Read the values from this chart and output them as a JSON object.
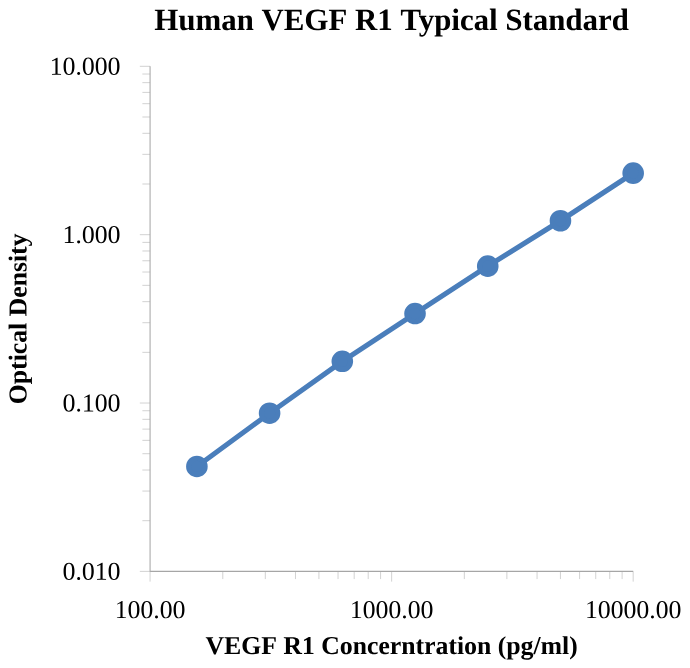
{
  "chart_data": {
    "type": "line",
    "title": "Human VEGF R1 Typical Standard",
    "xlabel": "VEGF R1 Concerntration (pg/ml)",
    "ylabel": "Optical Density",
    "x": [
      156.25,
      312.5,
      625,
      1250,
      2500,
      5000,
      10000
    ],
    "series": [
      {
        "color": "#4a7ebb",
        "values": [
          0.042,
          0.087,
          0.177,
          0.34,
          0.65,
          1.21,
          2.32
        ]
      }
    ],
    "log": "xy",
    "marker": "circle",
    "line_style": "solid",
    "grid": false,
    "xlim": [
      100,
      10000
    ],
    "ylim": [
      0.01,
      10
    ],
    "xticks": [
      {
        "value": 100,
        "label": "100.00"
      },
      {
        "value": 1000,
        "label": "1000.00"
      },
      {
        "value": 10000,
        "label": "10000.00"
      }
    ],
    "yticks": [
      {
        "value": 0.01,
        "label": "0.010"
      },
      {
        "value": 0.1,
        "label": "0.100"
      },
      {
        "value": 1,
        "label": "1.000"
      },
      {
        "value": 10,
        "label": "10.000"
      }
    ]
  }
}
